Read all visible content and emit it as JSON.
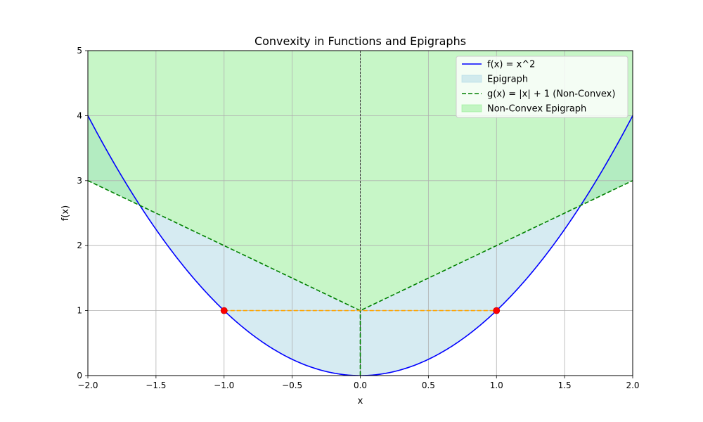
{
  "chart_data": {
    "type": "line",
    "title": "Convexity in Functions and Epigraphs",
    "xlabel": "x",
    "ylabel": "f(x)",
    "xlim": [
      -2,
      2
    ],
    "ylim": [
      0,
      5
    ],
    "x_ticks": [
      "−2.0",
      "−1.5",
      "−1.0",
      "−0.5",
      "0.0",
      "0.5",
      "1.0",
      "1.5",
      "2.0"
    ],
    "x_tick_values": [
      -2,
      -1.5,
      -1,
      -0.5,
      0,
      0.5,
      1,
      1.5,
      2
    ],
    "y_ticks": [
      "0",
      "1",
      "2",
      "3",
      "4",
      "5"
    ],
    "y_tick_values": [
      0,
      1,
      2,
      3,
      4,
      5
    ],
    "grid": true,
    "legend_position": "upper right",
    "series": [
      {
        "name": "f(x) = x^2",
        "expression": "x^2",
        "color": "#0000ff",
        "style": "solid"
      },
      {
        "name": "Epigraph",
        "kind": "fill between f(x) and g(x)",
        "color": "#add8e6"
      },
      {
        "name": "g(x) = |x| + 1 (Non-Convex)",
        "expression": "|x| + 1",
        "color": "#008000",
        "style": "dashed"
      },
      {
        "name": "Non-Convex Epigraph",
        "kind": "fill above g(x)",
        "color": "#90ee90"
      }
    ],
    "reference_segments": [
      {
        "from": [
          -1,
          1
        ],
        "to": [
          1,
          1
        ],
        "color": "#ffa500",
        "style": "dashed"
      },
      {
        "from": [
          0,
          0
        ],
        "to": [
          0,
          1
        ],
        "color": "#008000",
        "style": "dashed"
      }
    ],
    "vertical_line": {
      "x": 0,
      "color": "#000000",
      "style": "dashed"
    },
    "points": [
      {
        "x": -1,
        "y": 1,
        "color": "#ff0000"
      },
      {
        "x": 1,
        "y": 1,
        "color": "#ff0000"
      }
    ]
  }
}
